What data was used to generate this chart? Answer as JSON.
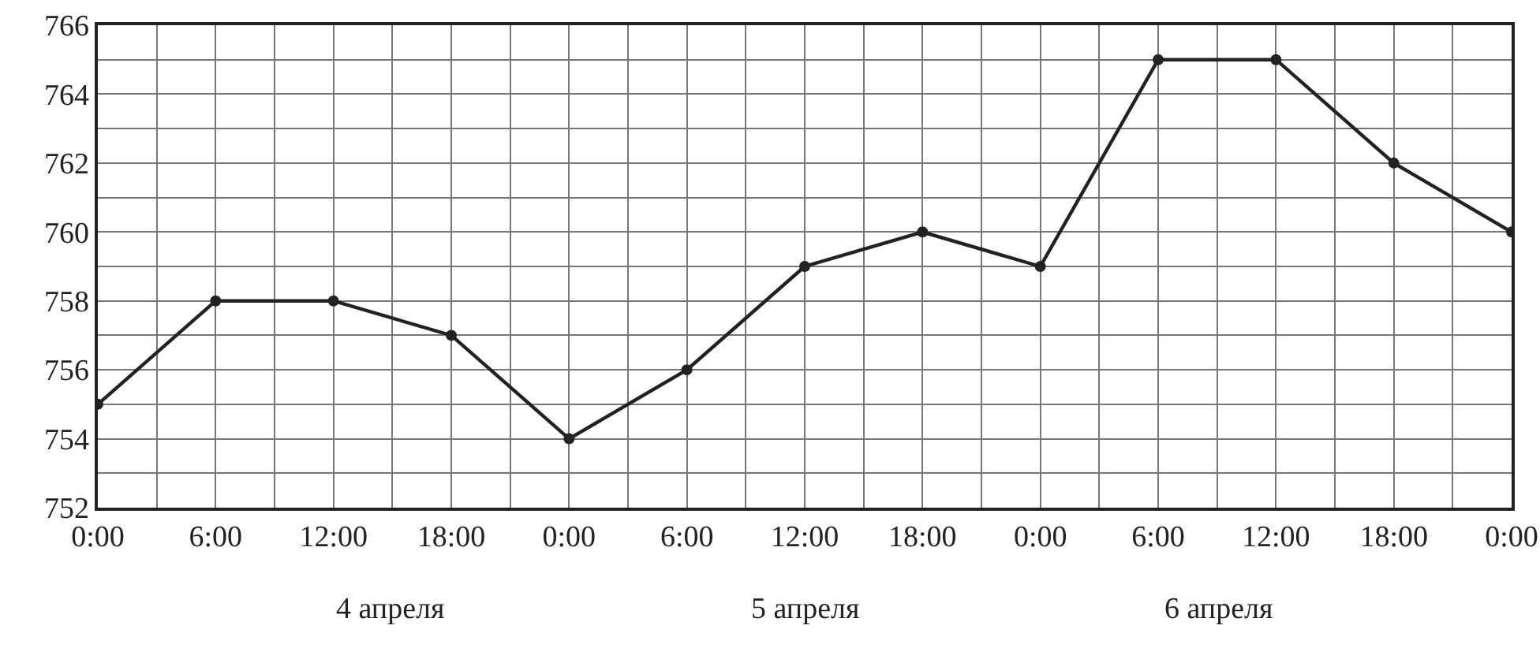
{
  "chart_data": {
    "type": "line",
    "x": [
      "--04-04T00:00",
      "--04-04T06:00",
      "--04-04T12:00",
      "--04-04T18:00",
      "--04-05T00:00",
      "--04-05T06:00",
      "--04-05T12:00",
      "--04-05T18:00",
      "--04-06T00:00",
      "--04-06T06:00",
      "--04-06T12:00",
      "--04-06T18:00",
      "--04-07T00:00"
    ],
    "values": [
      755,
      758,
      758,
      757,
      754,
      756,
      759,
      760,
      759,
      765,
      765,
      762,
      760
    ],
    "color": "#222222",
    "marker": "circle",
    "line_style": "solid",
    "grid": true,
    "xlim": [
      "--04-04T00:00",
      "--04-07T00:00"
    ],
    "xticks": [
      {
        "value": "--04-04T00:00",
        "label": "0:00"
      },
      {
        "value": "--04-04T03:00",
        "label": null
      },
      {
        "value": "--04-04T06:00",
        "label": "6:00"
      },
      {
        "value": "--04-04T09:00",
        "label": null
      },
      {
        "value": "--04-04T12:00",
        "label": "12:00"
      },
      {
        "value": "--04-04T15:00",
        "label": null
      },
      {
        "value": "--04-04T18:00",
        "label": "18:00"
      },
      {
        "value": "--04-04T21:00",
        "label": null
      },
      {
        "value": "--04-05T00:00",
        "label": "0:00"
      },
      {
        "value": "--04-05T03:00",
        "label": null
      },
      {
        "value": "--04-05T06:00",
        "label": "6:00"
      },
      {
        "value": "--04-05T09:00",
        "label": null
      },
      {
        "value": "--04-05T12:00",
        "label": "12:00"
      },
      {
        "value": "--04-05T15:00",
        "label": null
      },
      {
        "value": "--04-05T18:00",
        "label": "18:00"
      },
      {
        "value": "--04-05T21:00",
        "label": null
      },
      {
        "value": "--04-06T00:00",
        "label": "0:00"
      },
      {
        "value": "--04-06T03:00",
        "label": null
      },
      {
        "value": "--04-06T06:00",
        "label": "6:00"
      },
      {
        "value": "--04-06T09:00",
        "label": null
      },
      {
        "value": "--04-06T12:00",
        "label": "12:00"
      },
      {
        "value": "--04-06T15:00",
        "label": null
      },
      {
        "value": "--04-06T18:00",
        "label": "18:00"
      },
      {
        "value": "--04-06T21:00",
        "label": null
      },
      {
        "value": "--04-07T00:00",
        "label": "0:00"
      }
    ],
    "ylim": [
      752,
      766
    ],
    "yticks": [
      752,
      {
        "value": 753,
        "label": null
      },
      754,
      {
        "value": 755,
        "label": null
      },
      756,
      {
        "value": 757,
        "label": null
      },
      758,
      {
        "value": 759,
        "label": null
      },
      760,
      {
        "value": 761,
        "label": null
      },
      762,
      {
        "value": 763,
        "label": null
      },
      764,
      {
        "value": 765,
        "label": null
      },
      766
    ],
    "annotations": [
      "4 апреля",
      "5 апреля",
      "6 апреля"
    ]
  }
}
